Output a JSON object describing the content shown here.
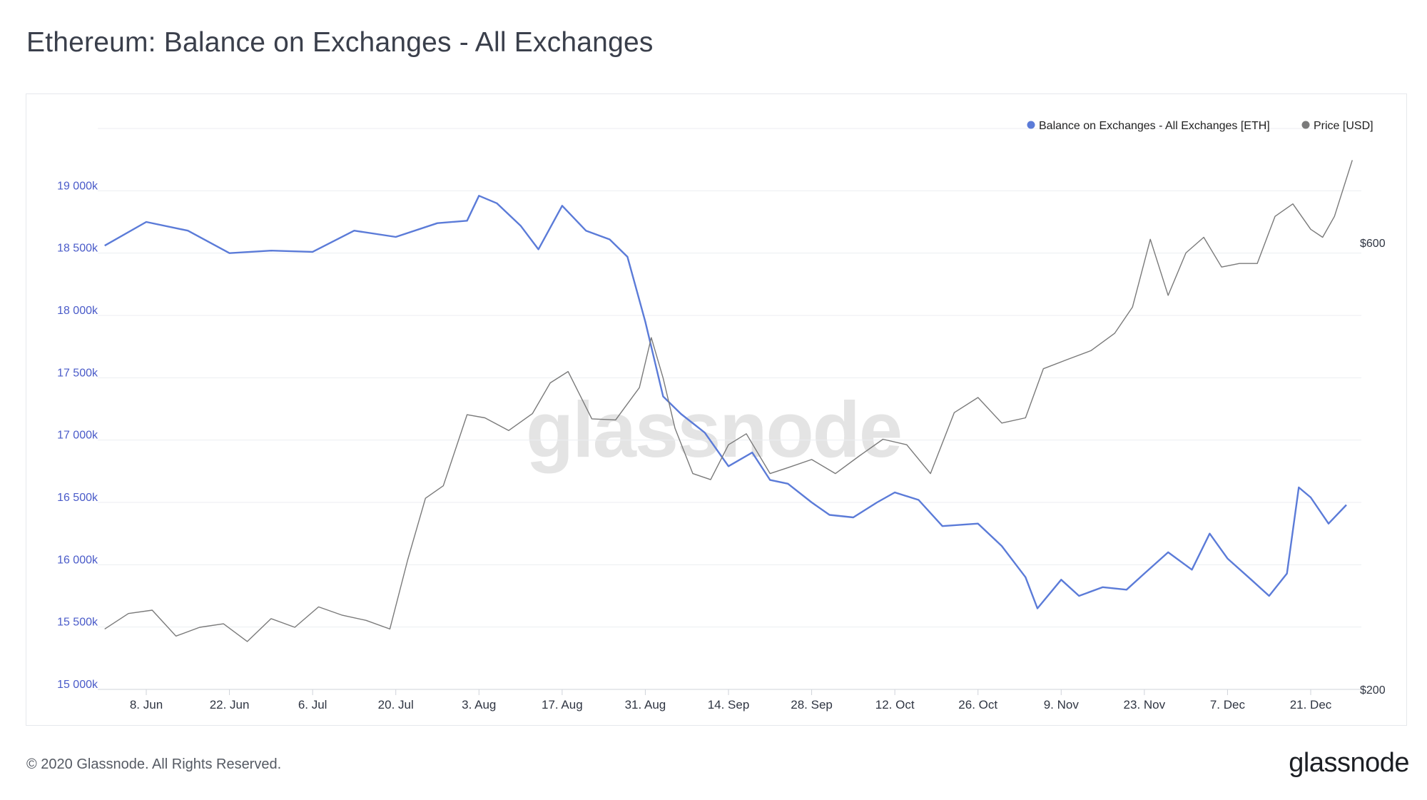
{
  "header": {
    "title": "Ethereum: Balance on Exchanges - All Exchanges"
  },
  "footer": {
    "copyright": "© 2020 Glassnode. All Rights Reserved.",
    "logo_text": "glassnode"
  },
  "watermark": "glassnode",
  "chart_data": {
    "type": "line",
    "title": "Ethereum: Balance on Exchanges - All Exchanges",
    "x_tick_labels": [
      "8. Jun",
      "22. Jun",
      "6. Jul",
      "20. Jul",
      "3. Aug",
      "17. Aug",
      "31. Aug",
      "14. Sep",
      "28. Sep",
      "12. Oct",
      "26. Oct",
      "9. Nov",
      "23. Nov",
      "7. Dec",
      "21. Dec"
    ],
    "y_left": {
      "ticks": [
        "15 000k",
        "15 500k",
        "16 000k",
        "16 500k",
        "17 000k",
        "17 500k",
        "18 000k",
        "18 500k",
        "19 000k"
      ],
      "ylim": [
        15000000,
        19500000
      ]
    },
    "y_right": {
      "ticks": [
        "$200",
        "$600"
      ],
      "scale": "log",
      "ylim": [
        200,
        800
      ]
    },
    "legend": {
      "position": "top-right"
    },
    "colors": {
      "balance": "#5b7bd8",
      "price": "#7a7a7a"
    },
    "series": [
      {
        "name": "Balance on Exchanges - All Exchanges [ETH]",
        "axis": "left",
        "color": "#5b7bd8",
        "x": [
          "Jun 1",
          "Jun 8",
          "Jun 15",
          "Jun 22",
          "Jun 29",
          "Jul 6",
          "Jul 13",
          "Jul 20",
          "Jul 27",
          "Aug 1",
          "Aug 3",
          "Aug 6",
          "Aug 10",
          "Aug 13",
          "Aug 17",
          "Aug 21",
          "Aug 25",
          "Aug 28",
          "Aug 31",
          "Sep 3",
          "Sep 6",
          "Sep 10",
          "Sep 14",
          "Sep 18",
          "Sep 21",
          "Sep 24",
          "Sep 28",
          "Oct 1",
          "Oct 5",
          "Oct 9",
          "Oct 12",
          "Oct 16",
          "Oct 20",
          "Oct 26",
          "Oct 30",
          "Nov 3",
          "Nov 5",
          "Nov 9",
          "Nov 12",
          "Nov 16",
          "Nov 20",
          "Nov 23",
          "Nov 27",
          "Dec 1",
          "Dec 4",
          "Dec 7",
          "Dec 11",
          "Dec 14",
          "Dec 17",
          "Dec 19",
          "Dec 21",
          "Dec 24",
          "Dec 27"
        ],
        "values": [
          18560000,
          18750000,
          18680000,
          18500000,
          18520000,
          18510000,
          18680000,
          18630000,
          18740000,
          18760000,
          18960000,
          18900000,
          18720000,
          18530000,
          18880000,
          18680000,
          18610000,
          18470000,
          17950000,
          17350000,
          17210000,
          17060000,
          16790000,
          16900000,
          16680000,
          16650000,
          16500000,
          16400000,
          16380000,
          16500000,
          16580000,
          16520000,
          16310000,
          16330000,
          16150000,
          15900000,
          15650000,
          15880000,
          15750000,
          15820000,
          15800000,
          15930000,
          16100000,
          15960000,
          16250000,
          16050000,
          15880000,
          15750000,
          15930000,
          16620000,
          16540000,
          16330000,
          16480000
        ]
      },
      {
        "name": "Price [USD]",
        "axis": "right",
        "color": "#7a7a7a",
        "x": [
          "Jun 1",
          "Jun 5",
          "Jun 9",
          "Jun 13",
          "Jun 17",
          "Jun 21",
          "Jun 25",
          "Jun 29",
          "Jul 3",
          "Jul 7",
          "Jul 11",
          "Jul 15",
          "Jul 19",
          "Jul 22",
          "Jul 25",
          "Jul 28",
          "Aug 1",
          "Aug 4",
          "Aug 8",
          "Aug 12",
          "Aug 15",
          "Aug 18",
          "Aug 22",
          "Aug 26",
          "Aug 30",
          "Sep 1",
          "Sep 3",
          "Sep 5",
          "Sep 8",
          "Sep 11",
          "Sep 14",
          "Sep 17",
          "Sep 21",
          "Sep 24",
          "Sep 28",
          "Oct 2",
          "Oct 6",
          "Oct 10",
          "Oct 14",
          "Oct 18",
          "Oct 22",
          "Oct 26",
          "Oct 30",
          "Nov 3",
          "Nov 6",
          "Nov 10",
          "Nov 14",
          "Nov 18",
          "Nov 21",
          "Nov 24",
          "Nov 27",
          "Nov 30",
          "Dec 3",
          "Dec 6",
          "Dec 9",
          "Dec 12",
          "Dec 15",
          "Dec 18",
          "Dec 21",
          "Dec 23",
          "Dec 25",
          "Dec 28"
        ],
        "values": [
          232,
          241,
          243,
          228,
          233,
          235,
          225,
          238,
          233,
          245,
          240,
          237,
          232,
          275,
          320,
          330,
          393,
          390,
          378,
          394,
          425,
          437,
          389,
          388,
          420,
          475,
          430,
          380,
          340,
          335,
          365,
          375,
          340,
          345,
          352,
          340,
          355,
          370,
          365,
          340,
          395,
          410,
          385,
          390,
          440,
          450,
          460,
          480,
          512,
          605,
          527,
          585,
          608,
          565,
          570,
          570,
          640,
          660,
          620,
          608,
          640,
          735
        ]
      }
    ]
  }
}
